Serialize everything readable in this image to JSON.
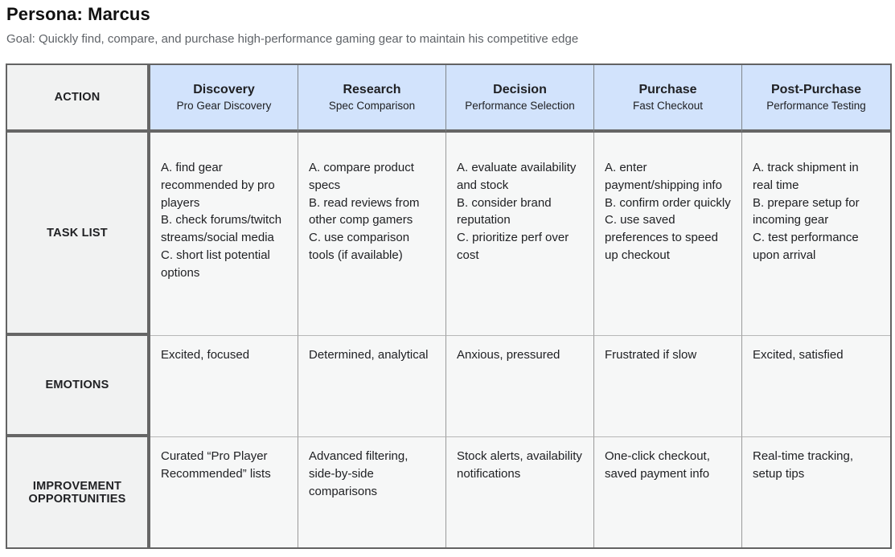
{
  "page": {
    "title": "Persona: Marcus",
    "goal": "Goal: Quickly find, compare, and purchase high-performance gaming gear to maintain his competitive edge"
  },
  "colors": {
    "stage_header_bg": "#d2e3fc",
    "label_cell_bg": "#f1f2f2",
    "content_cell_bg": "#f6f7f7",
    "thick_border": "#666666",
    "thin_border": "#9a9a9a",
    "goal_text": "#5f6368"
  },
  "table": {
    "row_labels": [
      "ACTION",
      "TASK LIST",
      "EMOTIONS",
      "IMPROVEMENT OPPORTUNITIES"
    ],
    "stages": [
      {
        "name": "Discovery",
        "subtitle": "Pro Gear Discovery",
        "tasks": [
          "A. find gear recommended by pro players",
          "B. check forums/twitch streams/social media",
          "C. short list potential options"
        ],
        "emotions": "Excited, focused",
        "improvements": "Curated “Pro Player Recommended” lists"
      },
      {
        "name": "Research",
        "subtitle": "Spec Comparison",
        "tasks": [
          "A. compare product specs",
          "B. read reviews from other comp gamers",
          "C. use comparison tools (if available)"
        ],
        "emotions": "Determined, analytical",
        "improvements": "Advanced filtering, side-by-side comparisons"
      },
      {
        "name": "Decision",
        "subtitle": "Performance Selection",
        "tasks": [
          "A. evaluate availability and stock",
          "B. consider brand reputation",
          "C. prioritize perf over cost"
        ],
        "emotions": "Anxious, pressured",
        "improvements": "Stock alerts, availability notifications"
      },
      {
        "name": "Purchase",
        "subtitle": "Fast Checkout",
        "tasks": [
          "A. enter payment/shipping info",
          "B. confirm order quickly",
          "C. use saved preferences to speed up checkout"
        ],
        "emotions": "Frustrated if slow",
        "improvements": "One-click checkout, saved payment info"
      },
      {
        "name": "Post-Purchase",
        "subtitle": "Performance Testing",
        "tasks": [
          "A. track shipment in real time",
          "B. prepare setup for incoming gear",
          "C. test performance upon arrival"
        ],
        "emotions": "Excited, satisfied",
        "improvements": "Real-time tracking, setup tips"
      }
    ]
  }
}
